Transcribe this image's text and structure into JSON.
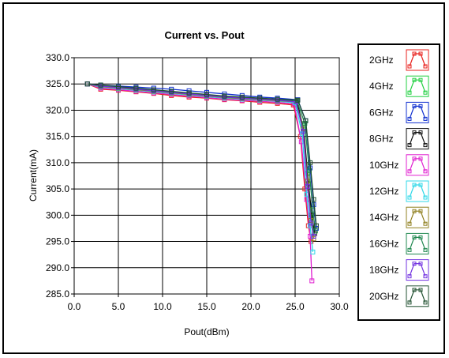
{
  "chart_data": {
    "type": "line",
    "title": "Current vs. Pout",
    "xlabel": "Pout(dBm)",
    "ylabel": "Current(mA)",
    "xlim": [
      0,
      30
    ],
    "ylim": [
      285,
      330
    ],
    "xticks": [
      "0.0",
      "5.0",
      "10.0",
      "15.0",
      "20.0",
      "25.0",
      "30.0"
    ],
    "yticks": [
      "285.0",
      "290.0",
      "295.0",
      "300.0",
      "305.0",
      "310.0",
      "315.0",
      "320.0",
      "325.0",
      "330.0"
    ],
    "grid": true,
    "legend_position": "right",
    "series": [
      {
        "name": "2GHz",
        "color": "#e8201c",
        "x": [
          1.5,
          3,
          5,
          7,
          9,
          11,
          13,
          15,
          17,
          19,
          21,
          23,
          24.8,
          25.6,
          26.1,
          26.5,
          26.8
        ],
        "y": [
          325.0,
          324.0,
          323.8,
          323.5,
          323.2,
          322.8,
          322.5,
          322.3,
          322.0,
          321.8,
          321.5,
          321.3,
          321.0,
          315.0,
          305.0,
          298.0,
          295.0
        ]
      },
      {
        "name": "4GHz",
        "color": "#20d040",
        "x": [
          1.5,
          3,
          5,
          7,
          9,
          11,
          13,
          15,
          17,
          19,
          21,
          23,
          25.0,
          25.9,
          26.4,
          26.8,
          27.1
        ],
        "y": [
          325.0,
          324.5,
          324.2,
          323.9,
          323.6,
          323.3,
          323.0,
          322.7,
          322.4,
          322.2,
          322.0,
          321.8,
          321.5,
          317.0,
          308.0,
          300.0,
          296.0
        ]
      },
      {
        "name": "6GHz",
        "color": "#1030d0",
        "x": [
          1.5,
          3,
          5,
          7,
          9,
          11,
          13,
          15,
          17,
          19,
          21,
          23,
          25.3,
          26.2,
          26.7,
          27.1,
          27.4
        ],
        "y": [
          325.0,
          324.8,
          324.6,
          324.4,
          324.2,
          324.0,
          323.7,
          323.4,
          323.1,
          322.8,
          322.5,
          322.3,
          322.0,
          318.0,
          309.0,
          302.0,
          297.5
        ]
      },
      {
        "name": "8GHz",
        "color": "#101010",
        "x": [
          1.5,
          3,
          5,
          7,
          9,
          11,
          13,
          15,
          17,
          19,
          21,
          23,
          25.2,
          26.0,
          26.5,
          26.9,
          27.2
        ],
        "y": [
          325.0,
          324.6,
          324.3,
          324.0,
          323.7,
          323.4,
          323.1,
          322.8,
          322.5,
          322.3,
          322.1,
          321.9,
          321.7,
          316.0,
          306.0,
          300.0,
          296.5
        ]
      },
      {
        "name": "10GHz",
        "color": "#e020d0",
        "x": [
          1.5,
          3,
          5,
          7,
          9,
          11,
          13,
          15,
          17,
          19,
          21,
          23,
          24.9,
          25.7,
          26.3,
          26.7,
          26.9
        ],
        "y": [
          325.0,
          324.2,
          323.9,
          323.6,
          323.3,
          323.0,
          322.7,
          322.4,
          322.1,
          321.9,
          321.7,
          321.5,
          321.2,
          314.0,
          303.0,
          296.0,
          287.5
        ]
      },
      {
        "name": "12GHz",
        "color": "#30d8e8",
        "x": [
          1.5,
          3,
          5,
          7,
          9,
          11,
          13,
          15,
          17,
          19,
          21,
          23,
          25.0,
          25.8,
          26.3,
          26.7,
          27.0
        ],
        "y": [
          325.0,
          324.4,
          324.1,
          323.8,
          323.5,
          323.2,
          322.9,
          322.6,
          322.3,
          322.1,
          321.9,
          321.7,
          321.4,
          315.5,
          304.0,
          298.0,
          293.0
        ]
      },
      {
        "name": "14GHz",
        "color": "#908020",
        "x": [
          1.5,
          3,
          5,
          7,
          9,
          11,
          13,
          15,
          17,
          19,
          21,
          23,
          25.1,
          25.9,
          26.4,
          26.8,
          27.1
        ],
        "y": [
          325.0,
          324.5,
          324.2,
          323.9,
          323.6,
          323.3,
          323.0,
          322.7,
          322.4,
          322.2,
          322.0,
          321.8,
          321.6,
          316.5,
          306.5,
          299.0,
          295.5
        ]
      },
      {
        "name": "16GHz",
        "color": "#208850",
        "x": [
          1.5,
          3,
          5,
          7,
          9,
          11,
          13,
          15,
          17,
          19,
          21,
          23,
          25.2,
          26.1,
          26.6,
          27.0,
          27.3
        ],
        "y": [
          325.0,
          324.7,
          324.4,
          324.1,
          323.8,
          323.5,
          323.2,
          322.9,
          322.6,
          322.4,
          322.2,
          322.0,
          321.8,
          317.5,
          308.5,
          301.0,
          297.0
        ]
      },
      {
        "name": "18GHz",
        "color": "#7030e0",
        "x": [
          1.5,
          3,
          5,
          7,
          9,
          11,
          13,
          15,
          17,
          19,
          21,
          23,
          25.1,
          25.9,
          26.4,
          26.8,
          27.1
        ],
        "y": [
          325.0,
          324.6,
          324.3,
          324.0,
          323.7,
          323.4,
          323.1,
          322.8,
          322.5,
          322.3,
          322.1,
          321.9,
          321.6,
          316.0,
          305.5,
          298.5,
          296.0
        ]
      },
      {
        "name": "20GHz",
        "color": "#205030",
        "x": [
          1.5,
          3,
          5,
          7,
          9,
          11,
          13,
          15,
          17,
          19,
          21,
          23,
          25.3,
          26.2,
          26.7,
          27.1,
          27.4
        ],
        "y": [
          325.0,
          324.8,
          324.5,
          324.2,
          323.9,
          323.6,
          323.3,
          323.0,
          322.7,
          322.5,
          322.3,
          322.1,
          321.9,
          318.0,
          310.0,
          303.0,
          298.0
        ]
      }
    ]
  }
}
